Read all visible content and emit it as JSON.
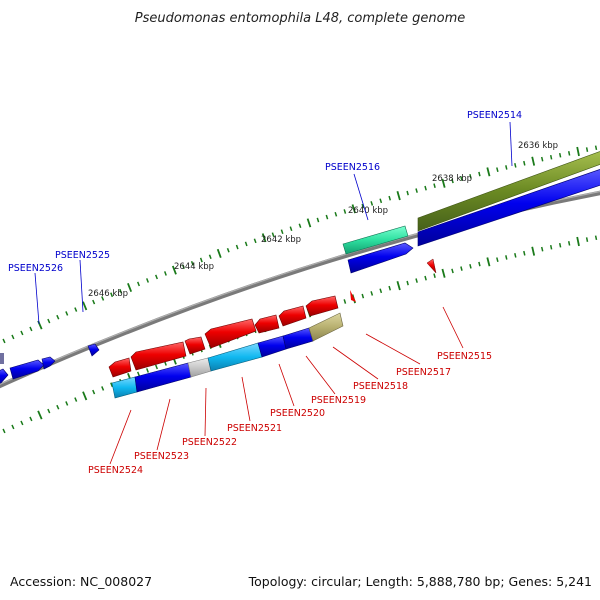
{
  "title": "Pseudomonas entomophila L48, complete genome",
  "footer": {
    "accession": "Accession: NC_008027",
    "summary": "Topology: circular; Length: 5,888,780 bp; Genes: 5,241"
  },
  "colors": {
    "forward_strand": "#0000ee",
    "reverse_strand": "#ee0000",
    "forward_label": "#0000cc",
    "reverse_label": "#cc0000",
    "backbone": "#7a7a7a",
    "tick": "#1a7a1a",
    "green_band": "#6b8a23",
    "teal_feature": "#2ee0a0",
    "cyan_feature": "#10b8f0",
    "khaki_feature": "#b8b070",
    "gray_feature": "#c8c8c8"
  },
  "scale_labels": [
    "2636 kbp",
    "2638 kbp",
    "2640 kbp",
    "2642 kbp",
    "2644 kbp",
    "2646 kbp"
  ],
  "gene_labels": {
    "forward": [
      "PSEEN2514",
      "PSEEN2516",
      "PSEEN2525",
      "PSEEN2526"
    ],
    "reverse": [
      "PSEEN2515",
      "PSEEN2517",
      "PSEEN2518",
      "PSEEN2519",
      "PSEEN2520",
      "PSEEN2521",
      "PSEEN2522",
      "PSEEN2523",
      "PSEEN2524"
    ]
  }
}
